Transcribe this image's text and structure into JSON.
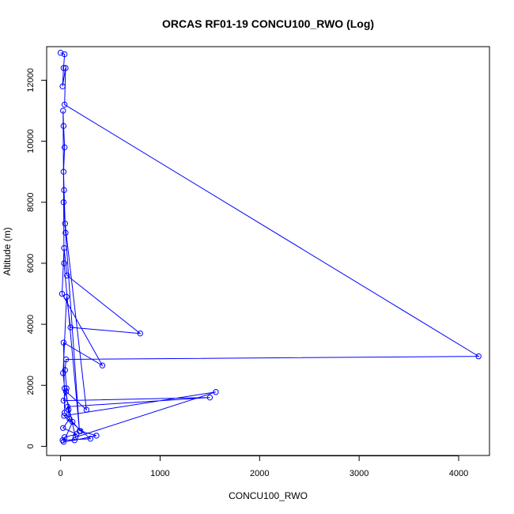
{
  "chart_data": {
    "type": "line",
    "title": "ORCAS RF01-19 CONCU100_RWO (Log)",
    "xlabel": "CONCU100_RWO",
    "ylabel": "Altitude (m)",
    "xlim": [
      -140,
      4310
    ],
    "ylim": [
      -300,
      13100
    ],
    "x_ticks": [
      0,
      1000,
      2000,
      3000,
      4000
    ],
    "y_ticks": [
      0,
      2000,
      4000,
      6000,
      8000,
      10000,
      12000
    ],
    "grid": false,
    "legend": "none",
    "series_color": "#0000ff",
    "marker": "open-circle",
    "series": [
      {
        "x": [
          0,
          40,
          30,
          20,
          50,
          40,
          4200,
          55,
          45,
          60,
          30,
          1500,
          70,
          90,
          25,
          160,
          40,
          20,
          300,
          35,
          1560,
          150,
          40,
          25,
          60,
          100,
          800,
          65,
          35,
          15,
          420,
          30,
          40,
          200,
          360,
          140,
          30,
          120,
          80,
          55,
          260,
          45,
          35,
          30,
          40,
          30,
          25,
          35,
          190,
          50,
          30
        ],
        "y": [
          12900,
          12850,
          12400,
          11800,
          12400,
          11200,
          2950,
          2850,
          2500,
          1900,
          1500,
          1600,
          1300,
          900,
          600,
          400,
          300,
          200,
          250,
          1000,
          1780,
          300,
          1900,
          2400,
          4900,
          3900,
          3700,
          5600,
          6500,
          5000,
          2650,
          3400,
          1100,
          500,
          350,
          200,
          150,
          800,
          1200,
          1800,
          1200,
          7300,
          8400,
          9000,
          9800,
          10500,
          11000,
          6000,
          500,
          7000,
          8000
        ]
      }
    ]
  }
}
